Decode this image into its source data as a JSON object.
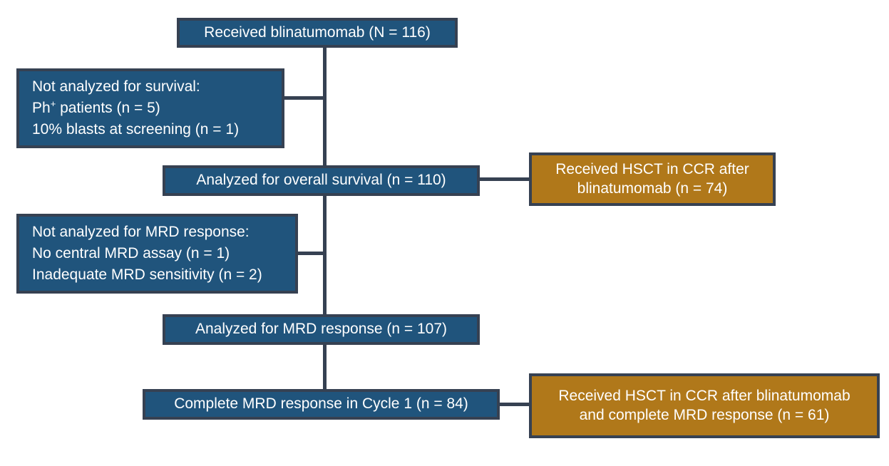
{
  "figure": {
    "type": "patient-flow-diagram",
    "background": "#FFFFFF",
    "palette": {
      "node_fill_blue": "#20547C",
      "node_fill_orange": "#B0781A",
      "node_border": "#364152",
      "node_text": "#FFFFFF"
    },
    "nodes": {
      "received": {
        "label": "Received blinatumomab (N = 116)"
      },
      "not_analyzed_survival": {
        "title": "Not analyzed for survival:",
        "ph_base": "Ph",
        "ph_sup": "+",
        "ph_rest": " patients (n = 5)",
        "line3": "10% blasts at screening (n = 1)"
      },
      "analyzed_os": {
        "label": "Analyzed for overall survival (n = 110)"
      },
      "hsct_after_blina": {
        "line1": "Received HSCT in CCR after",
        "line2": "blinatumomab (n = 74)"
      },
      "not_analyzed_mrd": {
        "title": "Not analyzed for MRD response:",
        "line2": "No central MRD assay (n = 1)",
        "line3": "Inadequate MRD sensitivity (n = 2)"
      },
      "analyzed_mrd": {
        "label": "Analyzed for MRD response (n = 107)"
      },
      "complete_mrd": {
        "label": "Complete MRD response in Cycle 1 (n = 84)"
      },
      "hsct_after_blina_mrd": {
        "line1": "Received HSCT in CCR after blinatumomab",
        "line2": "and complete MRD response (n = 61)"
      }
    }
  }
}
